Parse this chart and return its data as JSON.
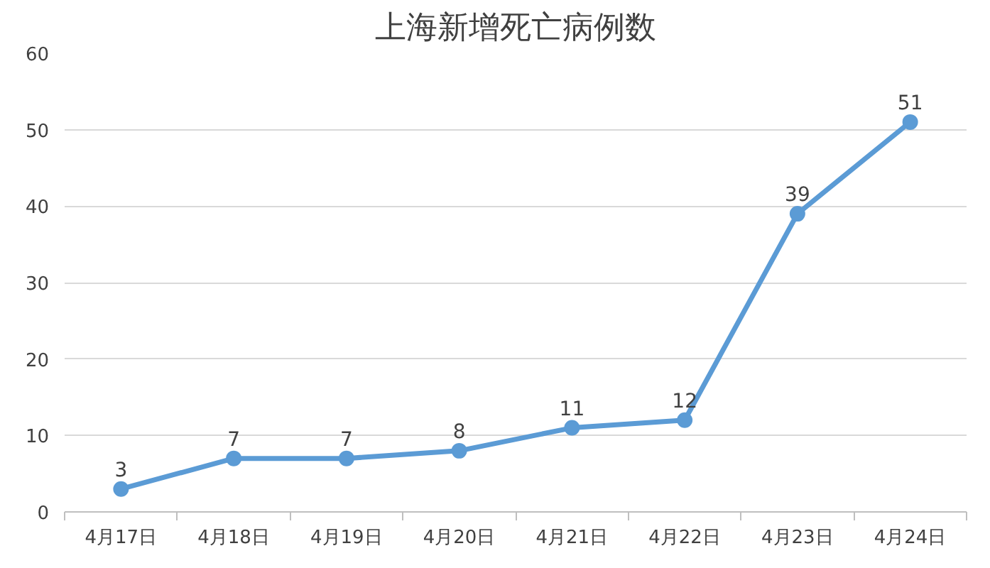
{
  "chart_data": {
    "type": "line",
    "title": "上海新增死亡病例数",
    "categories": [
      "4月17日",
      "4月18日",
      "4月19日",
      "4月20日",
      "4月21日",
      "4月22日",
      "4月23日",
      "4月24日"
    ],
    "series": [
      {
        "color": "#5b9bd5",
        "values": [
          3,
          7,
          7,
          8,
          11,
          12,
          39,
          51
        ]
      }
    ],
    "ylim": [
      0,
      60
    ],
    "yticks": [
      0,
      10,
      20,
      30,
      40,
      50,
      60
    ],
    "grid": "y",
    "marker": "circle",
    "line_style": "solid",
    "data_labels": true
  }
}
